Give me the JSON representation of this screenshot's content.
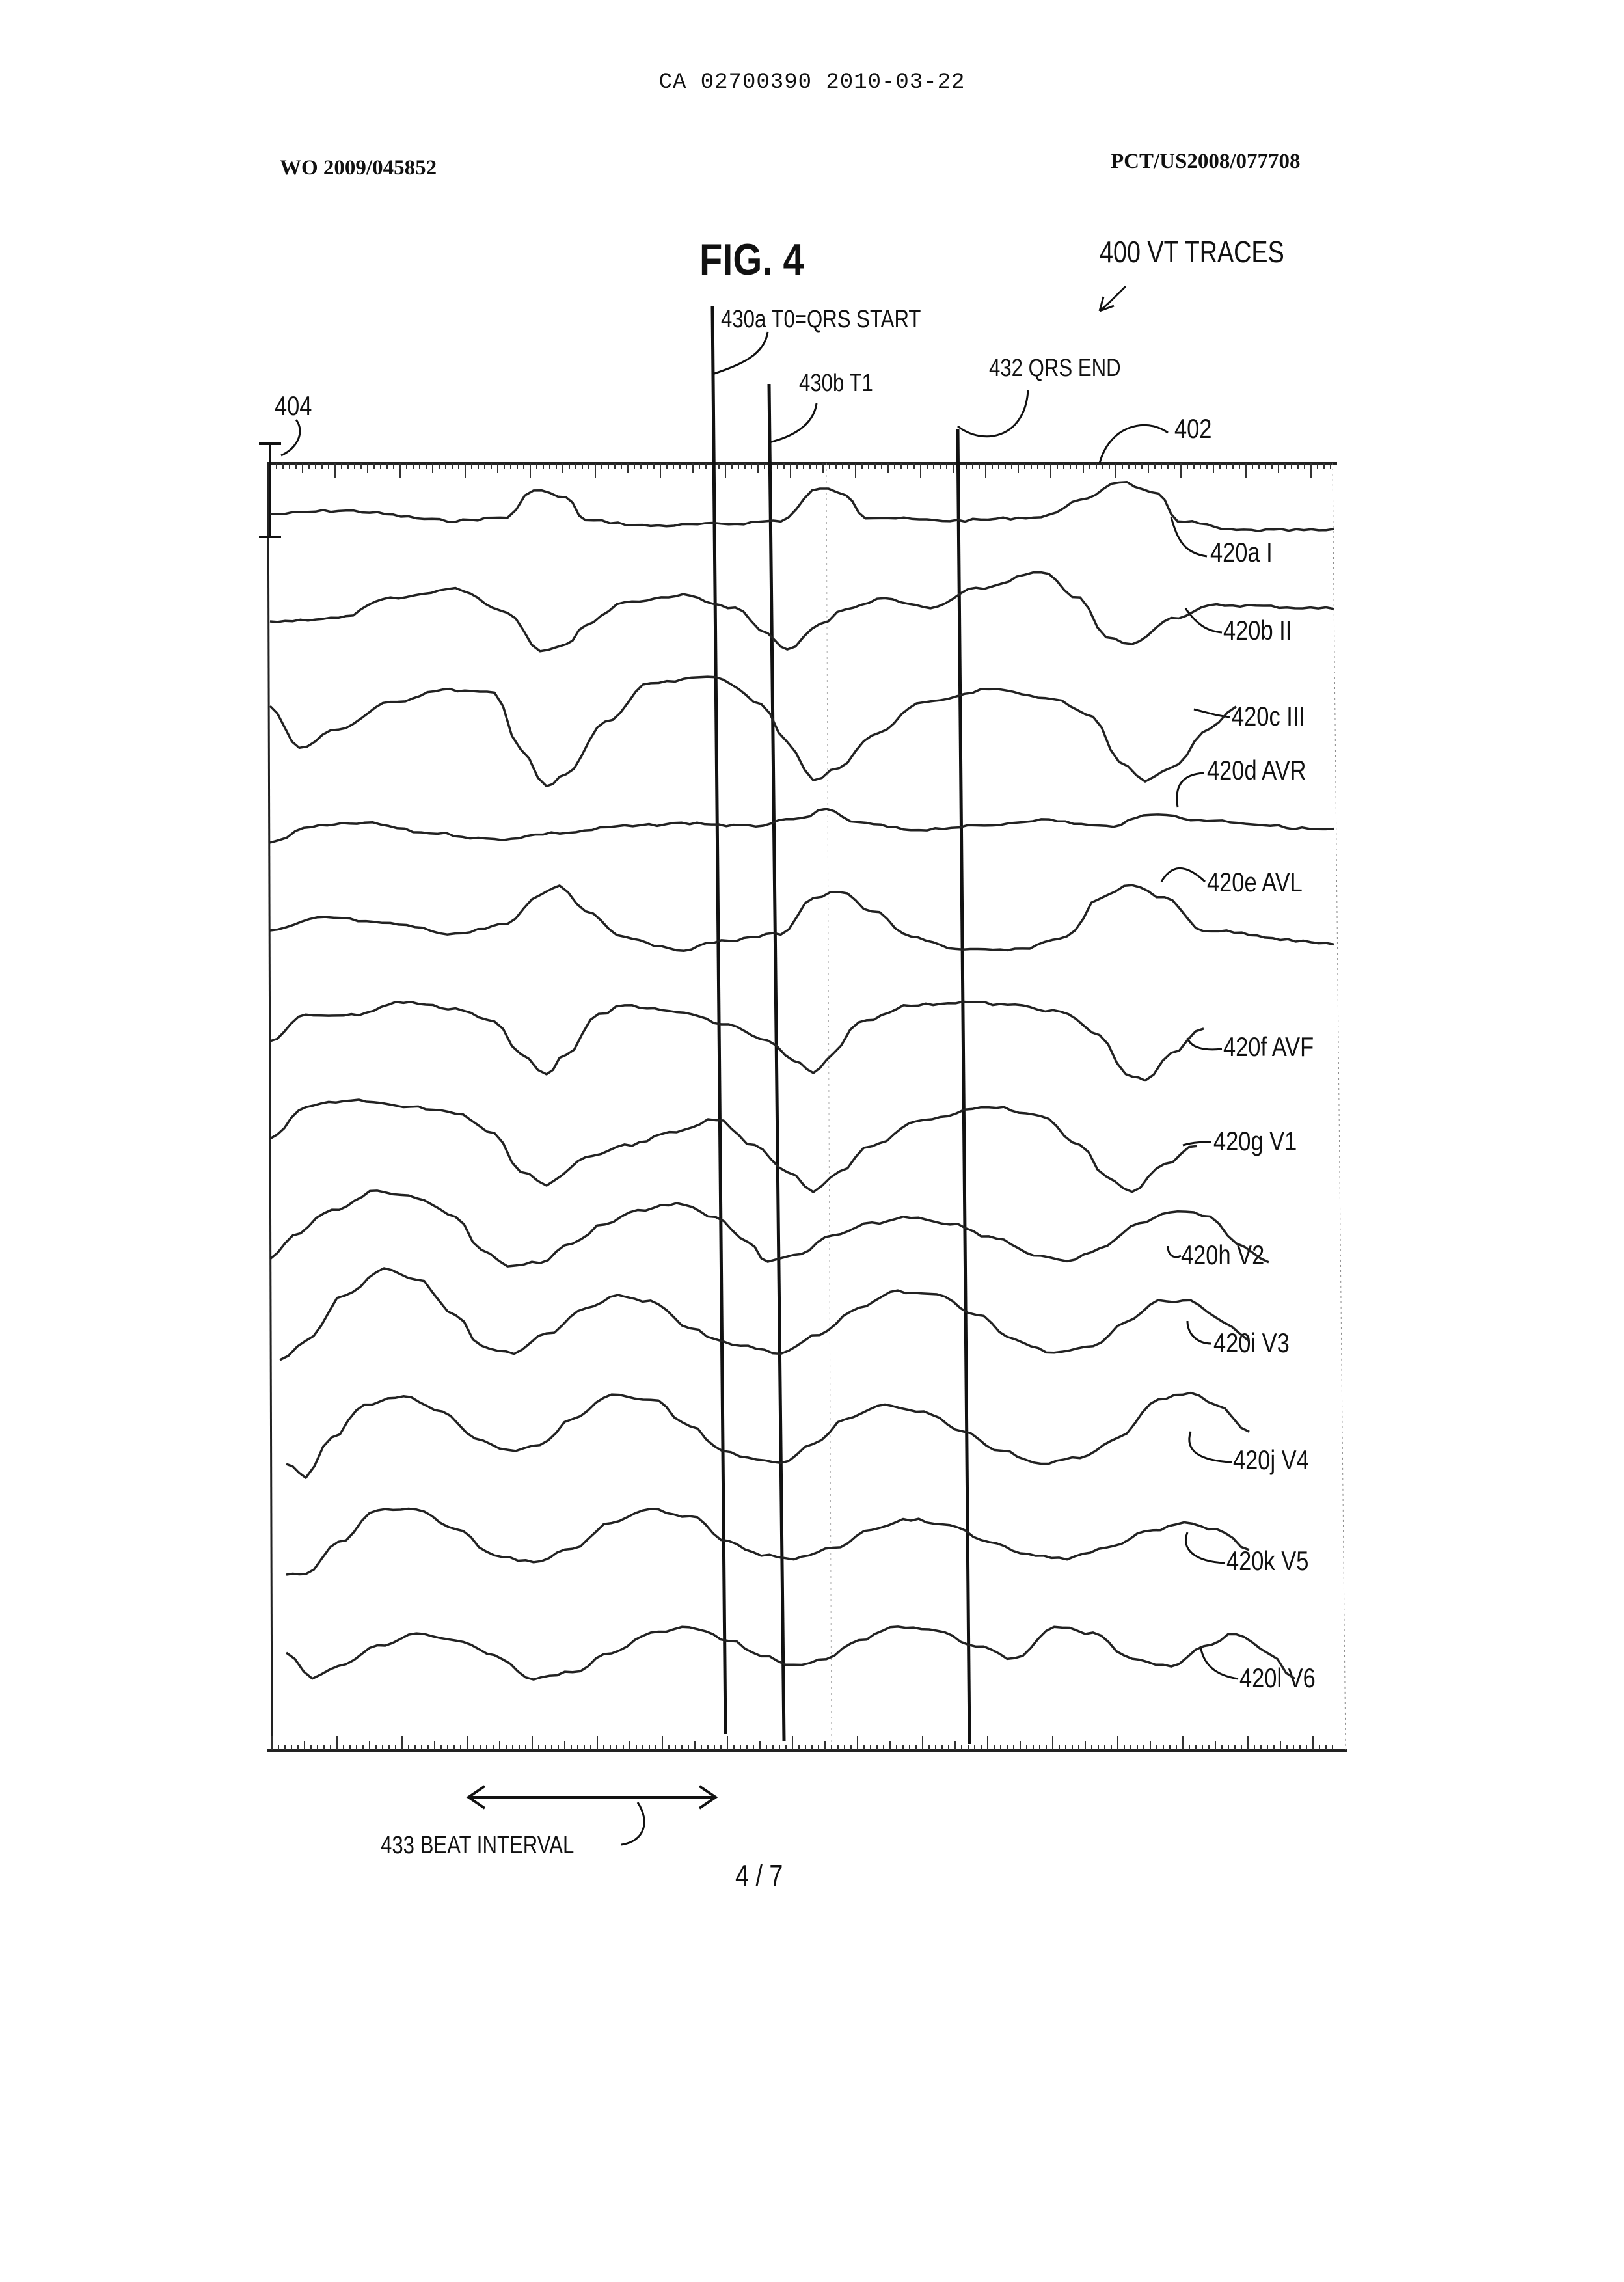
{
  "header": {
    "ca_number": "CA 02700390 2010-03-22",
    "wo_number": "WO 2009/045852",
    "pct_number": "PCT/US2008/077708"
  },
  "figure": {
    "title": "FIG. 4",
    "ref_400": "400 VT  TRACES",
    "ref_402": "402",
    "ref_404": "404",
    "ref_430a": "430a T0=QRS START",
    "ref_430b": "430b T1",
    "ref_432": "432 QRS END",
    "ref_433": "433 BEAT INTERVAL"
  },
  "traces": [
    {
      "label": "420a I"
    },
    {
      "label": "420b II"
    },
    {
      "label": "420c III"
    },
    {
      "label": "420d AVR"
    },
    {
      "label": "420e AVL"
    },
    {
      "label": "420f AVF"
    },
    {
      "label": "420g V1"
    },
    {
      "label": "420h V2"
    },
    {
      "label": "420i V3"
    },
    {
      "label": "420j V4"
    },
    {
      "label": "420k V5"
    },
    {
      "label": "420l V6"
    }
  ],
  "page": {
    "number": "4 / 7"
  }
}
